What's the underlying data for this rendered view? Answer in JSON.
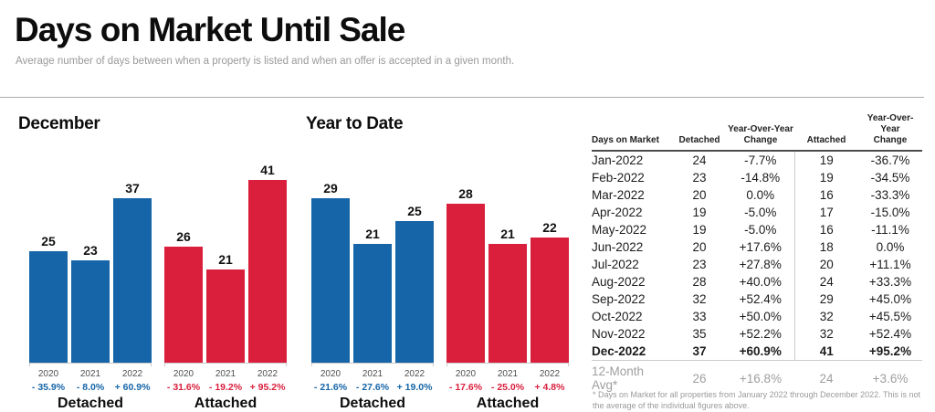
{
  "header": {
    "title": "Days on Market Until Sale",
    "subtitle": "Average number of days between when a property is listed and when an offer is accepted in a given month."
  },
  "colors": {
    "detached": "#1565a8",
    "attached": "#da1f3d"
  },
  "chart_data": [
    {
      "type": "bar",
      "title": "December",
      "ylim": [
        0,
        41
      ],
      "categories": [
        "2020",
        "2021",
        "2022"
      ],
      "legend_position": "none",
      "grid": false,
      "groups": [
        {
          "label": "Detached",
          "color_key": "detached",
          "years": [
            "2020",
            "2021",
            "2022"
          ],
          "values": [
            25,
            23,
            37
          ],
          "changes": [
            "- 35.9%",
            "- 8.0%",
            "+ 60.9%"
          ]
        },
        {
          "label": "Attached",
          "color_key": "attached",
          "years": [
            "2020",
            "2021",
            "2022"
          ],
          "values": [
            26,
            21,
            41
          ],
          "changes": [
            "- 31.6%",
            "- 19.2%",
            "+ 95.2%"
          ]
        }
      ]
    },
    {
      "type": "bar",
      "title": "Year to Date",
      "ylim": [
        0,
        29
      ],
      "categories": [
        "2020",
        "2021",
        "2022"
      ],
      "legend_position": "none",
      "grid": false,
      "groups": [
        {
          "label": "Detached",
          "color_key": "detached",
          "years": [
            "2020",
            "2021",
            "2022"
          ],
          "values": [
            29,
            21,
            25
          ],
          "changes": [
            "- 21.6%",
            "- 27.6%",
            "+ 19.0%"
          ]
        },
        {
          "label": "Attached",
          "color_key": "attached",
          "years": [
            "2020",
            "2021",
            "2022"
          ],
          "values": [
            28,
            21,
            22
          ],
          "changes": [
            "- 17.6%",
            "- 25.0%",
            "+ 4.8%"
          ]
        }
      ]
    }
  ],
  "table": {
    "headers": [
      "Days on Market",
      "Detached",
      "Year-Over-Year\nChange",
      "Attached",
      "Year-Over-Year\nChange"
    ],
    "rows": [
      [
        "Jan-2022",
        "24",
        "-7.7%",
        "19",
        "-36.7%"
      ],
      [
        "Feb-2022",
        "23",
        "-14.8%",
        "19",
        "-34.5%"
      ],
      [
        "Mar-2022",
        "20",
        "0.0%",
        "16",
        "-33.3%"
      ],
      [
        "Apr-2022",
        "19",
        "-5.0%",
        "17",
        "-15.0%"
      ],
      [
        "May-2022",
        "19",
        "-5.0%",
        "16",
        "-11.1%"
      ],
      [
        "Jun-2022",
        "20",
        "+17.6%",
        "18",
        "0.0%"
      ],
      [
        "Jul-2022",
        "23",
        "+27.8%",
        "20",
        "+11.1%"
      ],
      [
        "Aug-2022",
        "28",
        "+40.0%",
        "24",
        "+33.3%"
      ],
      [
        "Sep-2022",
        "32",
        "+52.4%",
        "29",
        "+45.0%"
      ],
      [
        "Oct-2022",
        "33",
        "+50.0%",
        "32",
        "+45.5%"
      ],
      [
        "Nov-2022",
        "35",
        "+52.2%",
        "32",
        "+52.4%"
      ],
      [
        "Dec-2022",
        "37",
        "+60.9%",
        "41",
        "+95.2%"
      ]
    ],
    "avg_row": [
      "12-Month Avg*",
      "26",
      "+16.8%",
      "24",
      "+3.6%"
    ],
    "footnote": "* Days on Market for all properties from January 2022 through December 2022. This is not the average of the individual figures above."
  }
}
